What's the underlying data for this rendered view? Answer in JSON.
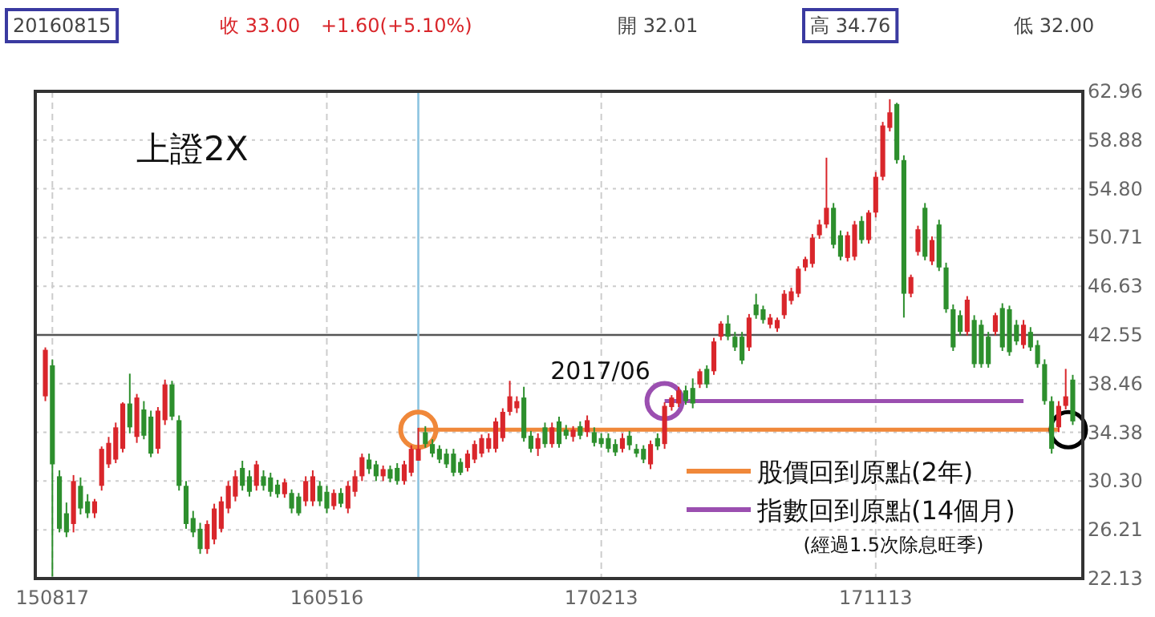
{
  "chart_data": {
    "type": "candlestick",
    "title": "上證2X",
    "x": [
      "2015-08-10",
      "2015-08-17",
      "2015-08-24",
      "2015-08-31",
      "2015-09-07",
      "2015-09-14",
      "2015-09-21",
      "2015-09-28",
      "2015-10-05",
      "2015-10-12",
      "2015-10-19",
      "2015-10-26",
      "2015-11-02",
      "2015-11-09",
      "2015-11-16",
      "2015-11-23",
      "2015-11-30",
      "2015-12-07",
      "2015-12-14",
      "2015-12-21",
      "2015-12-28",
      "2016-01-04",
      "2016-01-11",
      "2016-01-18",
      "2016-01-25",
      "2016-02-01",
      "2016-02-08",
      "2016-02-15",
      "2016-02-22",
      "2016-02-29",
      "2016-03-07",
      "2016-03-14",
      "2016-03-21",
      "2016-03-28",
      "2016-04-04",
      "2016-04-11",
      "2016-04-18",
      "2016-04-25",
      "2016-05-02",
      "2016-05-09",
      "2016-05-16",
      "2016-05-23",
      "2016-05-30",
      "2016-06-06",
      "2016-06-13",
      "2016-06-20",
      "2016-06-27",
      "2016-07-04",
      "2016-07-11",
      "2016-07-18",
      "2016-07-25",
      "2016-08-01",
      "2016-08-08",
      "2016-08-15",
      "2016-08-22",
      "2016-08-29",
      "2016-09-05",
      "2016-09-12",
      "2016-09-19",
      "2016-09-26",
      "2016-10-03",
      "2016-10-10",
      "2016-10-17",
      "2016-10-24",
      "2016-10-31",
      "2016-11-07",
      "2016-11-14",
      "2016-11-21",
      "2016-11-28",
      "2016-12-05",
      "2016-12-12",
      "2016-12-19",
      "2016-12-26",
      "2017-01-02",
      "2017-01-09",
      "2017-01-16",
      "2017-01-23",
      "2017-01-30",
      "2017-02-06",
      "2017-02-13",
      "2017-02-20",
      "2017-02-27",
      "2017-03-06",
      "2017-03-13",
      "2017-03-20",
      "2017-03-27",
      "2017-04-03",
      "2017-04-10",
      "2017-04-17",
      "2017-04-24",
      "2017-05-01",
      "2017-05-08",
      "2017-05-15",
      "2017-05-22",
      "2017-05-29",
      "2017-06-05",
      "2017-06-12",
      "2017-06-19",
      "2017-06-26",
      "2017-07-03",
      "2017-07-10",
      "2017-07-17",
      "2017-07-24",
      "2017-07-31",
      "2017-08-07",
      "2017-08-14",
      "2017-08-21",
      "2017-08-28",
      "2017-09-04",
      "2017-09-11",
      "2017-09-18",
      "2017-09-25",
      "2017-10-02",
      "2017-10-09",
      "2017-10-16",
      "2017-10-23",
      "2017-10-30",
      "2017-11-06",
      "2017-11-13",
      "2017-11-20",
      "2017-11-27",
      "2017-12-04",
      "2017-12-11",
      "2017-12-18",
      "2017-12-25",
      "2018-01-01",
      "2018-01-08",
      "2018-01-15",
      "2018-01-22",
      "2018-01-29",
      "2018-02-05",
      "2018-02-12",
      "2018-02-19",
      "2018-02-26",
      "2018-03-05",
      "2018-03-12",
      "2018-03-19",
      "2018-03-26",
      "2018-04-02",
      "2018-04-09",
      "2018-04-16",
      "2018-04-23",
      "2018-04-30",
      "2018-05-07",
      "2018-05-14",
      "2018-05-21",
      "2018-05-28"
    ],
    "ohlc": [
      [
        37.4,
        41.5,
        37.0,
        41.3
      ],
      [
        40.0,
        40.5,
        22.3,
        31.7
      ],
      [
        30.7,
        31.2,
        26.0,
        26.3
      ],
      [
        27.6,
        28.5,
        25.6,
        26.0
      ],
      [
        26.7,
        30.8,
        26.0,
        30.3
      ],
      [
        29.9,
        30.6,
        27.5,
        28.0
      ],
      [
        28.6,
        29.2,
        27.2,
        27.6
      ],
      [
        27.6,
        28.8,
        27.2,
        28.6
      ],
      [
        29.9,
        33.2,
        29.5,
        33.0
      ],
      [
        31.7,
        34.0,
        31.4,
        33.5
      ],
      [
        32.1,
        35.2,
        31.8,
        34.8
      ],
      [
        33.0,
        36.9,
        32.7,
        36.8
      ],
      [
        36.8,
        39.3,
        34.3,
        34.8
      ],
      [
        34.0,
        37.6,
        33.5,
        37.3
      ],
      [
        36.3,
        37.0,
        33.8,
        34.1
      ],
      [
        35.7,
        36.2,
        32.3,
        32.6
      ],
      [
        33.0,
        36.5,
        32.6,
        36.2
      ],
      [
        35.4,
        38.8,
        35.0,
        38.4
      ],
      [
        38.4,
        38.7,
        35.4,
        35.7
      ],
      [
        35.4,
        35.8,
        29.5,
        29.9
      ],
      [
        29.9,
        30.3,
        26.3,
        26.7
      ],
      [
        27.2,
        27.8,
        25.6,
        26.0
      ],
      [
        26.3,
        26.8,
        24.2,
        24.6
      ],
      [
        24.6,
        27.0,
        24.2,
        26.7
      ],
      [
        25.4,
        28.4,
        25.0,
        28.0
      ],
      [
        26.3,
        29.0,
        26.0,
        28.6
      ],
      [
        28.0,
        30.3,
        27.6,
        29.9
      ],
      [
        29.0,
        31.2,
        28.6,
        30.7
      ],
      [
        31.4,
        32.0,
        29.5,
        29.9
      ],
      [
        30.7,
        31.2,
        29.0,
        29.4
      ],
      [
        29.9,
        32.0,
        29.5,
        31.7
      ],
      [
        30.7,
        31.2,
        29.5,
        29.9
      ],
      [
        30.6,
        31.0,
        29.0,
        29.4
      ],
      [
        30.0,
        30.4,
        28.9,
        29.2
      ],
      [
        29.2,
        30.5,
        28.9,
        30.2
      ],
      [
        29.3,
        29.6,
        27.6,
        28.0
      ],
      [
        29.0,
        29.3,
        27.4,
        27.6
      ],
      [
        28.6,
        30.7,
        28.2,
        30.3
      ],
      [
        28.6,
        31.2,
        28.2,
        30.7
      ],
      [
        29.9,
        30.3,
        28.2,
        28.6
      ],
      [
        29.4,
        29.9,
        27.6,
        28.0
      ],
      [
        28.2,
        29.6,
        27.9,
        29.3
      ],
      [
        29.3,
        29.7,
        28.1,
        28.4
      ],
      [
        28.0,
        30.3,
        27.6,
        29.9
      ],
      [
        29.4,
        31.2,
        29.0,
        30.7
      ],
      [
        30.7,
        32.6,
        30.3,
        32.3
      ],
      [
        32.1,
        32.6,
        30.9,
        31.3
      ],
      [
        31.7,
        32.0,
        30.3,
        30.7
      ],
      [
        30.7,
        31.6,
        30.3,
        31.3
      ],
      [
        31.3,
        31.6,
        30.2,
        30.5
      ],
      [
        31.4,
        31.8,
        30.0,
        30.3
      ],
      [
        30.3,
        32.0,
        30.0,
        31.7
      ],
      [
        31.0,
        33.3,
        30.7,
        33.0
      ],
      [
        32.01,
        34.76,
        32.0,
        33.0
      ],
      [
        34.4,
        34.9,
        33.1,
        33.4
      ],
      [
        33.4,
        33.8,
        32.3,
        32.6
      ],
      [
        33.0,
        33.3,
        31.8,
        32.1
      ],
      [
        32.6,
        33.0,
        31.4,
        31.7
      ],
      [
        32.6,
        33.0,
        30.7,
        31.0
      ],
      [
        31.9,
        32.2,
        30.8,
        31.0
      ],
      [
        31.4,
        32.9,
        31.1,
        32.6
      ],
      [
        32.1,
        33.7,
        31.8,
        33.4
      ],
      [
        32.6,
        34.2,
        32.3,
        33.9
      ],
      [
        33.0,
        34.3,
        32.7,
        33.9
      ],
      [
        33.0,
        35.6,
        32.7,
        35.3
      ],
      [
        33.9,
        36.4,
        33.6,
        36.1
      ],
      [
        36.1,
        38.7,
        35.8,
        37.4
      ],
      [
        36.4,
        37.4,
        36.0,
        37.0
      ],
      [
        37.3,
        38.2,
        33.6,
        33.9
      ],
      [
        34.1,
        34.5,
        32.7,
        33.0
      ],
      [
        33.0,
        34.3,
        32.4,
        33.9
      ],
      [
        34.8,
        35.2,
        33.1,
        33.4
      ],
      [
        33.4,
        35.2,
        33.1,
        34.8
      ],
      [
        35.3,
        35.7,
        33.1,
        33.4
      ],
      [
        34.6,
        35.0,
        33.8,
        34.1
      ],
      [
        34.0,
        34.9,
        33.6,
        34.6
      ],
      [
        34.9,
        35.3,
        33.8,
        34.1
      ],
      [
        34.4,
        35.8,
        34.0,
        35.4
      ],
      [
        34.4,
        34.8,
        33.2,
        33.5
      ],
      [
        33.9,
        34.3,
        33.1,
        33.4
      ],
      [
        33.9,
        34.3,
        32.7,
        33.0
      ],
      [
        33.4,
        33.8,
        32.4,
        32.7
      ],
      [
        33.0,
        34.3,
        32.7,
        33.9
      ],
      [
        34.1,
        34.5,
        32.9,
        33.3
      ],
      [
        33.0,
        33.4,
        32.3,
        32.6
      ],
      [
        33.0,
        33.3,
        31.8,
        32.1
      ],
      [
        31.7,
        33.7,
        31.3,
        33.4
      ],
      [
        33.9,
        34.3,
        32.9,
        33.2
      ],
      [
        33.4,
        36.9,
        33.0,
        36.6
      ],
      [
        36.5,
        37.5,
        36.2,
        37.3
      ],
      [
        36.8,
        38.2,
        36.5,
        37.9
      ],
      [
        37.9,
        38.3,
        36.7,
        37.0
      ],
      [
        38.1,
        38.9,
        36.4,
        36.8
      ],
      [
        38.4,
        39.7,
        38.1,
        39.5
      ],
      [
        39.7,
        40.0,
        38.1,
        38.4
      ],
      [
        39.5,
        42.3,
        39.2,
        42.0
      ],
      [
        42.4,
        43.7,
        42.1,
        43.5
      ],
      [
        43.5,
        44.2,
        42.1,
        42.4
      ],
      [
        42.4,
        42.8,
        41.2,
        41.5
      ],
      [
        42.4,
        42.8,
        40.1,
        40.4
      ],
      [
        41.5,
        44.3,
        41.2,
        44.0
      ],
      [
        45.1,
        46.0,
        43.9,
        44.2
      ],
      [
        44.7,
        45.0,
        43.5,
        43.8
      ],
      [
        43.4,
        44.3,
        43.1,
        44.0
      ],
      [
        43.1,
        44.0,
        42.8,
        43.8
      ],
      [
        44.2,
        46.3,
        43.9,
        46.0
      ],
      [
        45.4,
        46.5,
        45.1,
        46.2
      ],
      [
        46.0,
        48.3,
        45.7,
        48.1
      ],
      [
        48.2,
        49.1,
        47.9,
        48.9
      ],
      [
        48.5,
        51.0,
        48.2,
        50.7
      ],
      [
        50.9,
        52.2,
        50.6,
        51.8
      ],
      [
        51.8,
        57.4,
        51.5,
        53.2
      ],
      [
        53.2,
        53.6,
        49.8,
        50.1
      ],
      [
        50.9,
        51.3,
        48.8,
        49.1
      ],
      [
        49.0,
        51.2,
        48.7,
        50.9
      ],
      [
        49.1,
        52.1,
        48.8,
        51.8
      ],
      [
        52.1,
        52.5,
        50.2,
        50.5
      ],
      [
        50.5,
        53.0,
        50.2,
        52.8
      ],
      [
        52.8,
        56.2,
        52.4,
        55.8
      ],
      [
        55.8,
        60.4,
        55.5,
        60.1
      ],
      [
        59.9,
        62.3,
        59.6,
        61.2
      ],
      [
        61.9,
        62.0,
        56.9,
        57.2
      ],
      [
        57.2,
        57.6,
        44.0,
        46.0
      ],
      [
        46.0,
        47.6,
        45.7,
        47.4
      ],
      [
        49.5,
        51.7,
        49.2,
        51.4
      ],
      [
        53.2,
        53.6,
        48.8,
        49.1
      ],
      [
        48.7,
        50.8,
        48.4,
        50.5
      ],
      [
        51.8,
        52.2,
        47.9,
        48.2
      ],
      [
        48.2,
        48.6,
        44.4,
        44.7
      ],
      [
        44.7,
        45.1,
        41.2,
        41.5
      ],
      [
        44.2,
        44.6,
        42.5,
        42.8
      ],
      [
        42.8,
        45.8,
        42.5,
        45.5
      ],
      [
        43.8,
        44.2,
        39.8,
        40.1
      ],
      [
        43.4,
        43.8,
        39.8,
        40.1
      ],
      [
        42.4,
        42.8,
        39.8,
        40.1
      ],
      [
        42.8,
        44.4,
        42.5,
        44.2
      ],
      [
        44.8,
        45.2,
        41.2,
        41.5
      ],
      [
        44.7,
        45.0,
        40.8,
        41.1
      ],
      [
        43.4,
        43.8,
        41.7,
        42.0
      ],
      [
        41.7,
        43.8,
        41.4,
        43.4
      ],
      [
        42.8,
        43.2,
        41.2,
        41.5
      ],
      [
        41.7,
        42.1,
        39.8,
        40.1
      ],
      [
        40.1,
        40.5,
        36.7,
        37.0
      ],
      [
        37.0,
        37.4,
        32.6,
        33.0
      ],
      [
        34.8,
        37.0,
        34.4,
        36.6
      ],
      [
        36.6,
        39.7,
        36.3,
        37.4
      ],
      [
        38.8,
        39.2,
        35.0,
        35.3
      ]
    ],
    "colors": [
      "#d9262b",
      "#2d8f2d",
      "#2d8f2d",
      "#2d8f2d",
      "#d9262b",
      "#2d8f2d",
      "#2d8f2d",
      "#d9262b",
      "#d9262b",
      "#d9262b",
      "#d9262b",
      "#d9262b",
      "#2d8f2d",
      "#d9262b",
      "#2d8f2d",
      "#2d8f2d",
      "#d9262b",
      "#d9262b",
      "#2d8f2d",
      "#2d8f2d",
      "#2d8f2d",
      "#2d8f2d",
      "#2d8f2d",
      "#d9262b",
      "#d9262b",
      "#d9262b",
      "#d9262b",
      "#d9262b",
      "#2d8f2d",
      "#2d8f2d",
      "#d9262b",
      "#2d8f2d",
      "#2d8f2d",
      "#2d8f2d",
      "#d9262b",
      "#2d8f2d",
      "#2d8f2d",
      "#d9262b",
      "#d9262b",
      "#2d8f2d",
      "#2d8f2d",
      "#d9262b",
      "#2d8f2d",
      "#d9262b",
      "#d9262b",
      "#d9262b",
      "#2d8f2d",
      "#2d8f2d",
      "#d9262b",
      "#2d8f2d",
      "#2d8f2d",
      "#d9262b",
      "#d9262b",
      "#d9262b",
      "#2d8f2d",
      "#2d8f2d",
      "#2d8f2d",
      "#2d8f2d",
      "#2d8f2d",
      "#2d8f2d",
      "#d9262b",
      "#d9262b",
      "#d9262b",
      "#d9262b",
      "#d9262b",
      "#d9262b",
      "#d9262b",
      "#d9262b",
      "#2d8f2d",
      "#2d8f2d",
      "#d9262b",
      "#2d8f2d",
      "#d9262b",
      "#2d8f2d",
      "#2d8f2d",
      "#d9262b",
      "#2d8f2d",
      "#d9262b",
      "#2d8f2d",
      "#2d8f2d",
      "#2d8f2d",
      "#2d8f2d",
      "#d9262b",
      "#2d8f2d",
      "#2d8f2d",
      "#2d8f2d",
      "#d9262b",
      "#2d8f2d",
      "#d9262b",
      "#d9262b",
      "#d9262b",
      "#2d8f2d",
      "#2d8f2d",
      "#d9262b",
      "#2d8f2d",
      "#d9262b",
      "#d9262b",
      "#2d8f2d",
      "#2d8f2d",
      "#2d8f2d",
      "#d9262b",
      "#2d8f2d",
      "#2d8f2d",
      "#d9262b",
      "#d9262b",
      "#d9262b",
      "#d9262b",
      "#d9262b",
      "#d9262b",
      "#d9262b",
      "#d9262b",
      "#d9262b",
      "#2d8f2d",
      "#2d8f2d",
      "#d9262b",
      "#d9262b",
      "#2d8f2d",
      "#d9262b",
      "#d9262b",
      "#d9262b",
      "#d9262b",
      "#2d8f2d",
      "#2d8f2d",
      "#d9262b",
      "#d9262b",
      "#2d8f2d",
      "#d9262b",
      "#2d8f2d",
      "#2d8f2d",
      "#2d8f2d",
      "#2d8f2d",
      "#d9262b",
      "#2d8f2d",
      "#2d8f2d",
      "#2d8f2d",
      "#d9262b",
      "#2d8f2d",
      "#2d8f2d",
      "#2d8f2d",
      "#d9262b",
      "#2d8f2d",
      "#2d8f2d",
      "#2d8f2d",
      "#2d8f2d",
      "#d9262b",
      "#d9262b",
      "#2d8f2d"
    ],
    "xlim": [
      "2015-07-31",
      "2018-06-07"
    ],
    "xticks": [
      {
        "value": "2015-08-17",
        "label": "150817"
      },
      {
        "value": "2016-05-16",
        "label": "160516"
      },
      {
        "value": "2017-02-13",
        "label": "170213"
      },
      {
        "value": "2017-11-13",
        "label": "171113"
      }
    ],
    "ylim": [
      22.13,
      62.96
    ],
    "yticks": [
      {
        "value": 22.13,
        "label": "22.13"
      },
      {
        "value": 26.21,
        "label": "26.21"
      },
      {
        "value": 30.3,
        "label": "30.30"
      },
      {
        "value": 34.38,
        "label": "34.38"
      },
      {
        "value": 38.46,
        "label": "38.46"
      },
      {
        "value": 42.55,
        "label": "42.55"
      },
      {
        "value": 46.63,
        "label": "46.63"
      },
      {
        "value": 50.71,
        "label": "50.71"
      },
      {
        "value": 54.8,
        "label": "54.80"
      },
      {
        "value": 58.88,
        "label": "58.88"
      },
      {
        "value": 62.96,
        "label": "62.96"
      }
    ],
    "grid": true,
    "series": [
      {
        "type": "line",
        "name": "股價回到原點(2年)",
        "color": "#f0883a",
        "x": [
          "2016-08-15",
          "2018-05-14"
        ],
        "values": [
          34.6,
          34.6
        ]
      },
      {
        "type": "line",
        "name": "指數回到原點(14個月)",
        "color": "#9b4fb0",
        "x": [
          "2017-04-17",
          "2018-04-09"
        ],
        "values": [
          37.0,
          37.0
        ]
      }
    ],
    "ref_lines": [
      {
        "axis": "y",
        "value": 42.55,
        "color": "#555555"
      },
      {
        "axis": "x",
        "value": "2016-08-15",
        "color": "#8cc4e0"
      }
    ],
    "legend": "bottom right",
    "annotations": [
      "20160815",
      "收 33.00",
      "+1.60(+5.10%)",
      "開 32.01",
      "高 34.76",
      "低 32.00",
      "2017/06",
      "(經過1.5次除息旺季)"
    ]
  }
}
